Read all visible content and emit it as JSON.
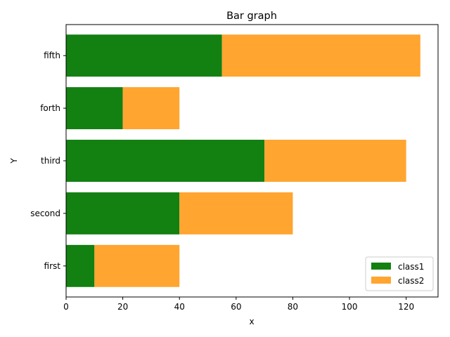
{
  "chart_data": {
    "type": "bar",
    "orientation": "horizontal",
    "stacked": true,
    "title": "Bar graph",
    "xlabel": "x",
    "ylabel": "Y",
    "categories": [
      "first",
      "second",
      "third",
      "forth",
      "fifth"
    ],
    "series": [
      {
        "name": "class1",
        "values": [
          10,
          40,
          70,
          20,
          55
        ],
        "color": "#138012"
      },
      {
        "name": "class2",
        "values": [
          30,
          40,
          50,
          20,
          70
        ],
        "color": "#ffa530"
      }
    ],
    "xlim": [
      0,
      131.25
    ],
    "xticks": [
      0,
      20,
      40,
      60,
      80,
      100,
      120
    ],
    "grid": false,
    "legend": "lower right"
  }
}
